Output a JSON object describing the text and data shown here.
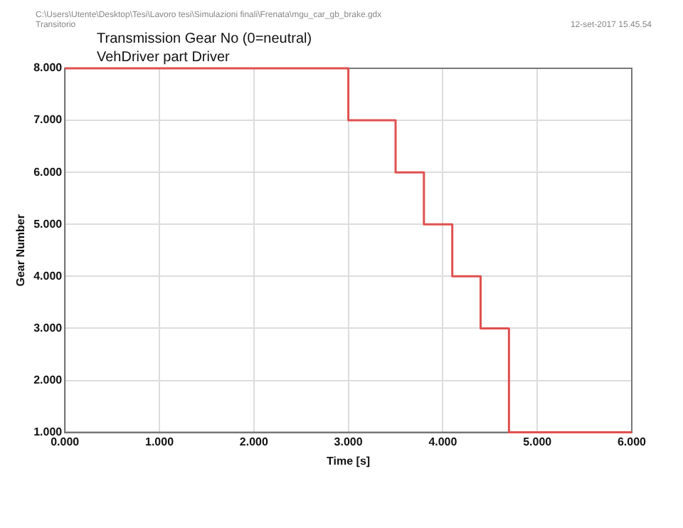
{
  "chart_data": {
    "type": "step",
    "title": "Transmission Gear No (0=neutral)",
    "subtitle": "VehDriver part Driver",
    "xlabel": "Time [s]",
    "ylabel": "Gear Number",
    "annotations": [
      "C:\\Users\\Utente\\Desktop\\Tesi\\Lavoro tesi\\Simulazioni finali\\Frenata\\mgu_car_gb_brake.gdx",
      "Transitorio",
      "12-set-2017   15.45.54"
    ],
    "x": [
      0,
      3.0,
      3.5,
      3.8,
      4.1,
      4.4,
      4.7,
      6.0
    ],
    "series": [
      {
        "color": "#e05050",
        "values": [
          8,
          7,
          6,
          5,
          4,
          3,
          1,
          1
        ]
      }
    ],
    "xlim": [
      0,
      6
    ],
    "xticks": [
      {
        "value": 0,
        "label": "0.000"
      },
      {
        "value": 1,
        "label": "1.000"
      },
      {
        "value": 2,
        "label": "2.000"
      },
      {
        "value": 3,
        "label": "3.000"
      },
      {
        "value": 4,
        "label": "4.000"
      },
      {
        "value": 5,
        "label": "5.000"
      },
      {
        "value": 6,
        "label": "6.000"
      }
    ],
    "ylim": [
      1,
      8
    ],
    "yticks": [
      {
        "value": 1,
        "label": "1.000"
      },
      {
        "value": 2,
        "label": "2.000"
      },
      {
        "value": 3,
        "label": "3.000"
      },
      {
        "value": 4,
        "label": "4.000"
      },
      {
        "value": 5,
        "label": "5.000"
      },
      {
        "value": 6,
        "label": "6.000"
      },
      {
        "value": 7,
        "label": "7.000"
      },
      {
        "value": 8,
        "label": "8.000"
      }
    ],
    "grid": true,
    "legend": false,
    "marker": "none",
    "line_style": "solid"
  }
}
